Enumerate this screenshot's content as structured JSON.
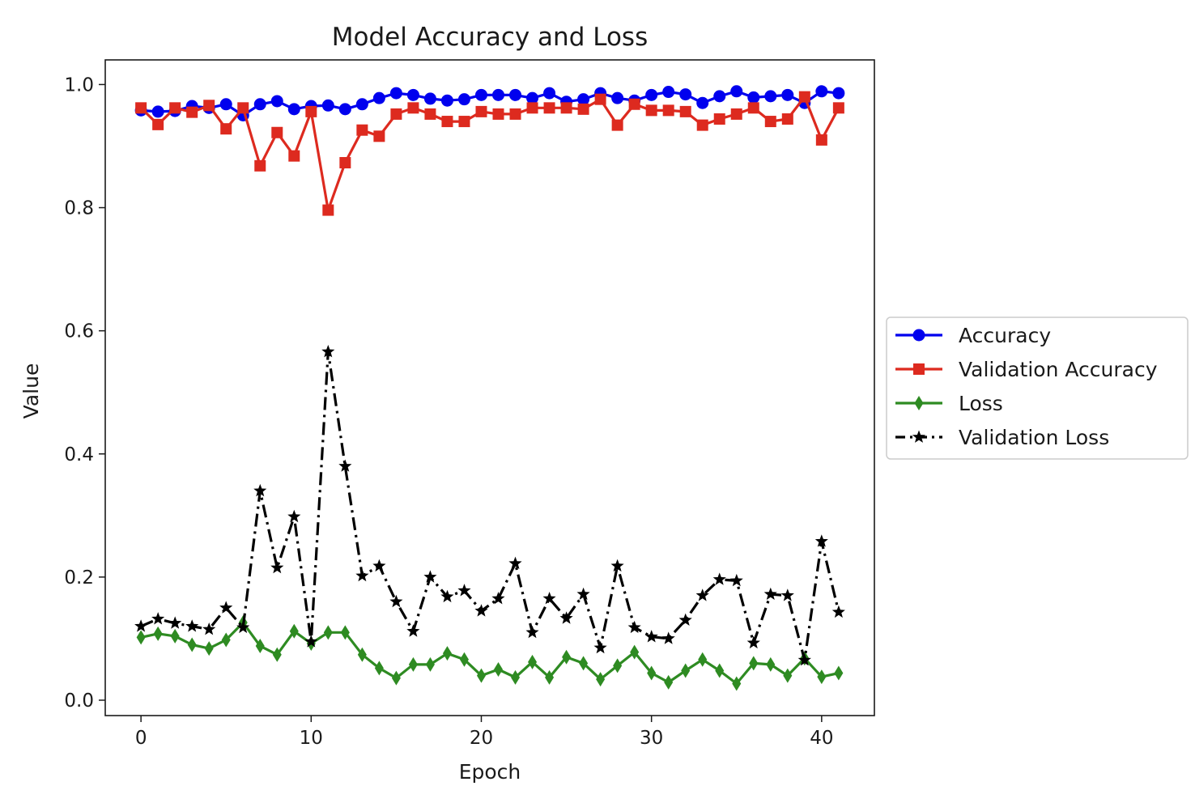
{
  "chart_data": {
    "type": "line",
    "title": "Model Accuracy and Loss",
    "xlabel": "Epoch",
    "ylabel": "Value",
    "xlim": [
      -2.1,
      43.1
    ],
    "ylim": [
      -0.025,
      1.04
    ],
    "xticks": [
      0,
      10,
      20,
      30,
      40
    ],
    "xtick_labels": [
      "0",
      "10",
      "20",
      "30",
      "40"
    ],
    "yticks": [
      0.0,
      0.2,
      0.4,
      0.6,
      0.8,
      1.0
    ],
    "ytick_labels": [
      "0.0",
      "0.2",
      "0.4",
      "0.6",
      "0.8",
      "1.0"
    ],
    "grid": false,
    "legend_position": "center-right, outside plot",
    "x": [
      0,
      1,
      2,
      3,
      4,
      5,
      6,
      7,
      8,
      9,
      10,
      11,
      12,
      13,
      14,
      15,
      16,
      17,
      18,
      19,
      20,
      21,
      22,
      23,
      24,
      25,
      26,
      27,
      28,
      29,
      30,
      31,
      32,
      33,
      34,
      35,
      36,
      37,
      38,
      39,
      40,
      41
    ],
    "series": [
      {
        "name": "Accuracy",
        "color": "#0000ee",
        "marker": "circle",
        "dash": "solid",
        "values": [
          0.958,
          0.956,
          0.957,
          0.965,
          0.962,
          0.968,
          0.95,
          0.968,
          0.973,
          0.96,
          0.965,
          0.966,
          0.96,
          0.968,
          0.978,
          0.986,
          0.983,
          0.977,
          0.974,
          0.976,
          0.983,
          0.983,
          0.983,
          0.978,
          0.986,
          0.972,
          0.976,
          0.986,
          0.978,
          0.974,
          0.983,
          0.988,
          0.984,
          0.97,
          0.981,
          0.989,
          0.979,
          0.981,
          0.983,
          0.97,
          0.989,
          0.986
        ]
      },
      {
        "name": "Validation Accuracy",
        "color": "#dd2a1f",
        "marker": "square",
        "dash": "solid",
        "values": [
          0.962,
          0.935,
          0.962,
          0.955,
          0.966,
          0.928,
          0.962,
          0.868,
          0.922,
          0.884,
          0.956,
          0.796,
          0.873,
          0.926,
          0.916,
          0.952,
          0.962,
          0.952,
          0.94,
          0.94,
          0.956,
          0.952,
          0.952,
          0.962,
          0.962,
          0.962,
          0.96,
          0.976,
          0.934,
          0.968,
          0.958,
          0.958,
          0.956,
          0.934,
          0.944,
          0.952,
          0.962,
          0.94,
          0.944,
          0.98,
          0.91,
          0.962
        ]
      },
      {
        "name": "Loss",
        "color": "#2e8b22",
        "marker": "diamond",
        "dash": "solid",
        "values": [
          0.102,
          0.108,
          0.104,
          0.09,
          0.084,
          0.098,
          0.126,
          0.088,
          0.074,
          0.112,
          0.092,
          0.11,
          0.11,
          0.074,
          0.052,
          0.036,
          0.058,
          0.058,
          0.076,
          0.066,
          0.04,
          0.05,
          0.037,
          0.062,
          0.037,
          0.07,
          0.06,
          0.034,
          0.056,
          0.078,
          0.044,
          0.029,
          0.048,
          0.066,
          0.048,
          0.027,
          0.06,
          0.058,
          0.04,
          0.068,
          0.038,
          0.044
        ]
      },
      {
        "name": "Validation Loss",
        "color": "#000000",
        "marker": "star",
        "dash": "dashdot",
        "values": [
          0.12,
          0.132,
          0.125,
          0.12,
          0.115,
          0.15,
          0.118,
          0.34,
          0.215,
          0.298,
          0.095,
          0.566,
          0.38,
          0.202,
          0.218,
          0.16,
          0.112,
          0.2,
          0.168,
          0.178,
          0.145,
          0.165,
          0.222,
          0.11,
          0.165,
          0.133,
          0.172,
          0.085,
          0.218,
          0.118,
          0.103,
          0.1,
          0.13,
          0.17,
          0.196,
          0.194,
          0.093,
          0.172,
          0.17,
          0.065,
          0.258,
          0.143
        ]
      }
    ]
  }
}
